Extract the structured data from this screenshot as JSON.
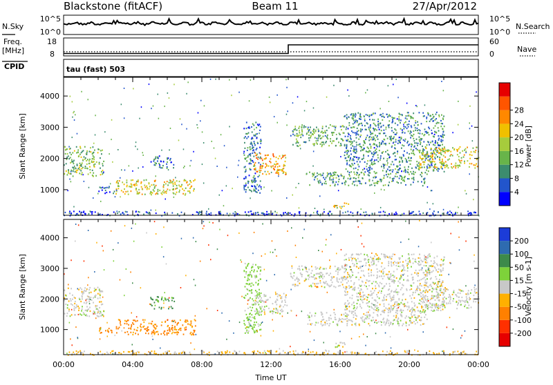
{
  "header": {
    "station": "Blackstone (fitACF)",
    "beam": "Beam 11",
    "date": "27/Apr/2012"
  },
  "top_panels": {
    "nsky_label": "N.Sky",
    "nsearch_label": "N.Search",
    "freq_label": "Freq.",
    "freq_unit": "[MHz]",
    "cpid_label": "CPID",
    "nave_label": "Nave",
    "cpid_value": "tau (fast) 503",
    "noise_ticks_left": [
      "10^5",
      "10^0"
    ],
    "noise_ticks_right": [
      "10^5",
      "10^0"
    ],
    "freq_ticks": [
      "18",
      "8"
    ],
    "nave_ticks": [
      "60",
      "0"
    ],
    "freq_levels": [
      {
        "t": 0,
        "v": 10.5
      },
      {
        "t": 13,
        "v": 10.5
      },
      {
        "t": 13,
        "v": 15.3
      },
      {
        "t": 24,
        "v": 15.3
      }
    ],
    "nave_level": 16
  },
  "chart_data": [
    {
      "type": "heatmap",
      "name": "power",
      "ylabel": "Slant Range [km]",
      "xlabel": "Time UT",
      "xlim_hours": [
        0,
        24
      ],
      "ylim": [
        180,
        4600
      ],
      "x_ticks": [
        "00:00",
        "04:00",
        "08:00",
        "12:00",
        "16:00",
        "20:00",
        "00:00"
      ],
      "y_ticks": [
        1000,
        2000,
        3000,
        4000
      ],
      "colorbar": {
        "label": "Power [dB]",
        "ticks": [
          "4",
          "8",
          "12",
          "16",
          "20",
          "24",
          "28"
        ],
        "colors": [
          "#0000ff",
          "#2255cc",
          "#3c8c6e",
          "#68b44a",
          "#a6cc3c",
          "#f0c000",
          "#ff8800",
          "#ff5500",
          "#e60000"
        ]
      },
      "regions": [
        {
          "t0": 0.0,
          "t1": 2.3,
          "r0": 1450,
          "r1": 2400,
          "v": 14
        },
        {
          "t0": 2.0,
          "t1": 3.1,
          "r0": 900,
          "r1": 1100,
          "v": 7
        },
        {
          "t0": 3.0,
          "t1": 7.6,
          "r0": 850,
          "r1": 1350,
          "v": 18
        },
        {
          "t0": 5.0,
          "t1": 6.4,
          "r0": 1700,
          "r1": 2100,
          "v": 8
        },
        {
          "t0": 10.4,
          "t1": 11.4,
          "r0": 900,
          "r1": 3200,
          "v": 9
        },
        {
          "t0": 11.0,
          "t1": 12.9,
          "r0": 1500,
          "r1": 2200,
          "v": 22
        },
        {
          "t0": 13.1,
          "t1": 16.2,
          "r0": 2400,
          "r1": 3100,
          "v": 12
        },
        {
          "t0": 16.2,
          "t1": 22.0,
          "r0": 1600,
          "r1": 3500,
          "v": 10
        },
        {
          "t0": 20.5,
          "t1": 24.0,
          "r0": 1700,
          "r1": 2400,
          "v": 18
        },
        {
          "t0": 14.0,
          "t1": 21.0,
          "r0": 1150,
          "r1": 1600,
          "v": 11
        },
        {
          "t0": 15.6,
          "t1": 16.5,
          "r0": 420,
          "r1": 600,
          "v": 19
        },
        {
          "t0": 0.0,
          "t1": 24.0,
          "r0": 190,
          "r1": 330,
          "v": 6
        }
      ]
    },
    {
      "type": "heatmap",
      "name": "velocity",
      "ylabel": "Slant Range [km]",
      "xlabel": "Time UT",
      "xlim_hours": [
        0,
        24
      ],
      "ylim": [
        180,
        4600
      ],
      "x_ticks": [
        "00:00",
        "04:00",
        "08:00",
        "12:00",
        "16:00",
        "20:00",
        "00:00"
      ],
      "y_ticks": [
        1000,
        2000,
        3000,
        4000
      ],
      "colorbar": {
        "label": "Velocity [m s-1]",
        "ticks": [
          "200",
          "100",
          "50",
          "15",
          "-15",
          "-50",
          "-100",
          "-200"
        ],
        "colors": [
          "#1c3cd8",
          "#2e6bb0",
          "#3d8a4a",
          "#7ed23a",
          "#c8c8c8",
          "#ffb000",
          "#ff8000",
          "#ff3000",
          "#e60000"
        ]
      },
      "regions": [
        {
          "t0": 0.0,
          "t1": 2.3,
          "r0": 1450,
          "r1": 2400,
          "v": 0
        },
        {
          "t0": 2.0,
          "t1": 3.1,
          "r0": 900,
          "r1": 1100,
          "v": -60
        },
        {
          "t0": 3.0,
          "t1": 7.6,
          "r0": 850,
          "r1": 1350,
          "v": -60
        },
        {
          "t0": 5.0,
          "t1": 6.4,
          "r0": 1700,
          "r1": 2100,
          "v": 60
        },
        {
          "t0": 10.4,
          "t1": 11.4,
          "r0": 900,
          "r1": 3200,
          "v": 30
        },
        {
          "t0": 11.0,
          "t1": 12.9,
          "r0": 1500,
          "r1": 2200,
          "v": 0
        },
        {
          "t0": 13.1,
          "t1": 16.2,
          "r0": 2400,
          "r1": 3100,
          "v": 0
        },
        {
          "t0": 16.2,
          "t1": 22.0,
          "r0": 1600,
          "r1": 3500,
          "v": 0
        },
        {
          "t0": 20.5,
          "t1": 24.0,
          "r0": 1700,
          "r1": 2400,
          "v": 0
        },
        {
          "t0": 14.0,
          "t1": 21.0,
          "r0": 1150,
          "r1": 1600,
          "v": 0
        },
        {
          "t0": 15.6,
          "t1": 16.5,
          "r0": 420,
          "r1": 600,
          "v": 0
        },
        {
          "t0": 0.0,
          "t1": 24.0,
          "r0": 190,
          "r1": 330,
          "v": -20
        }
      ]
    }
  ]
}
